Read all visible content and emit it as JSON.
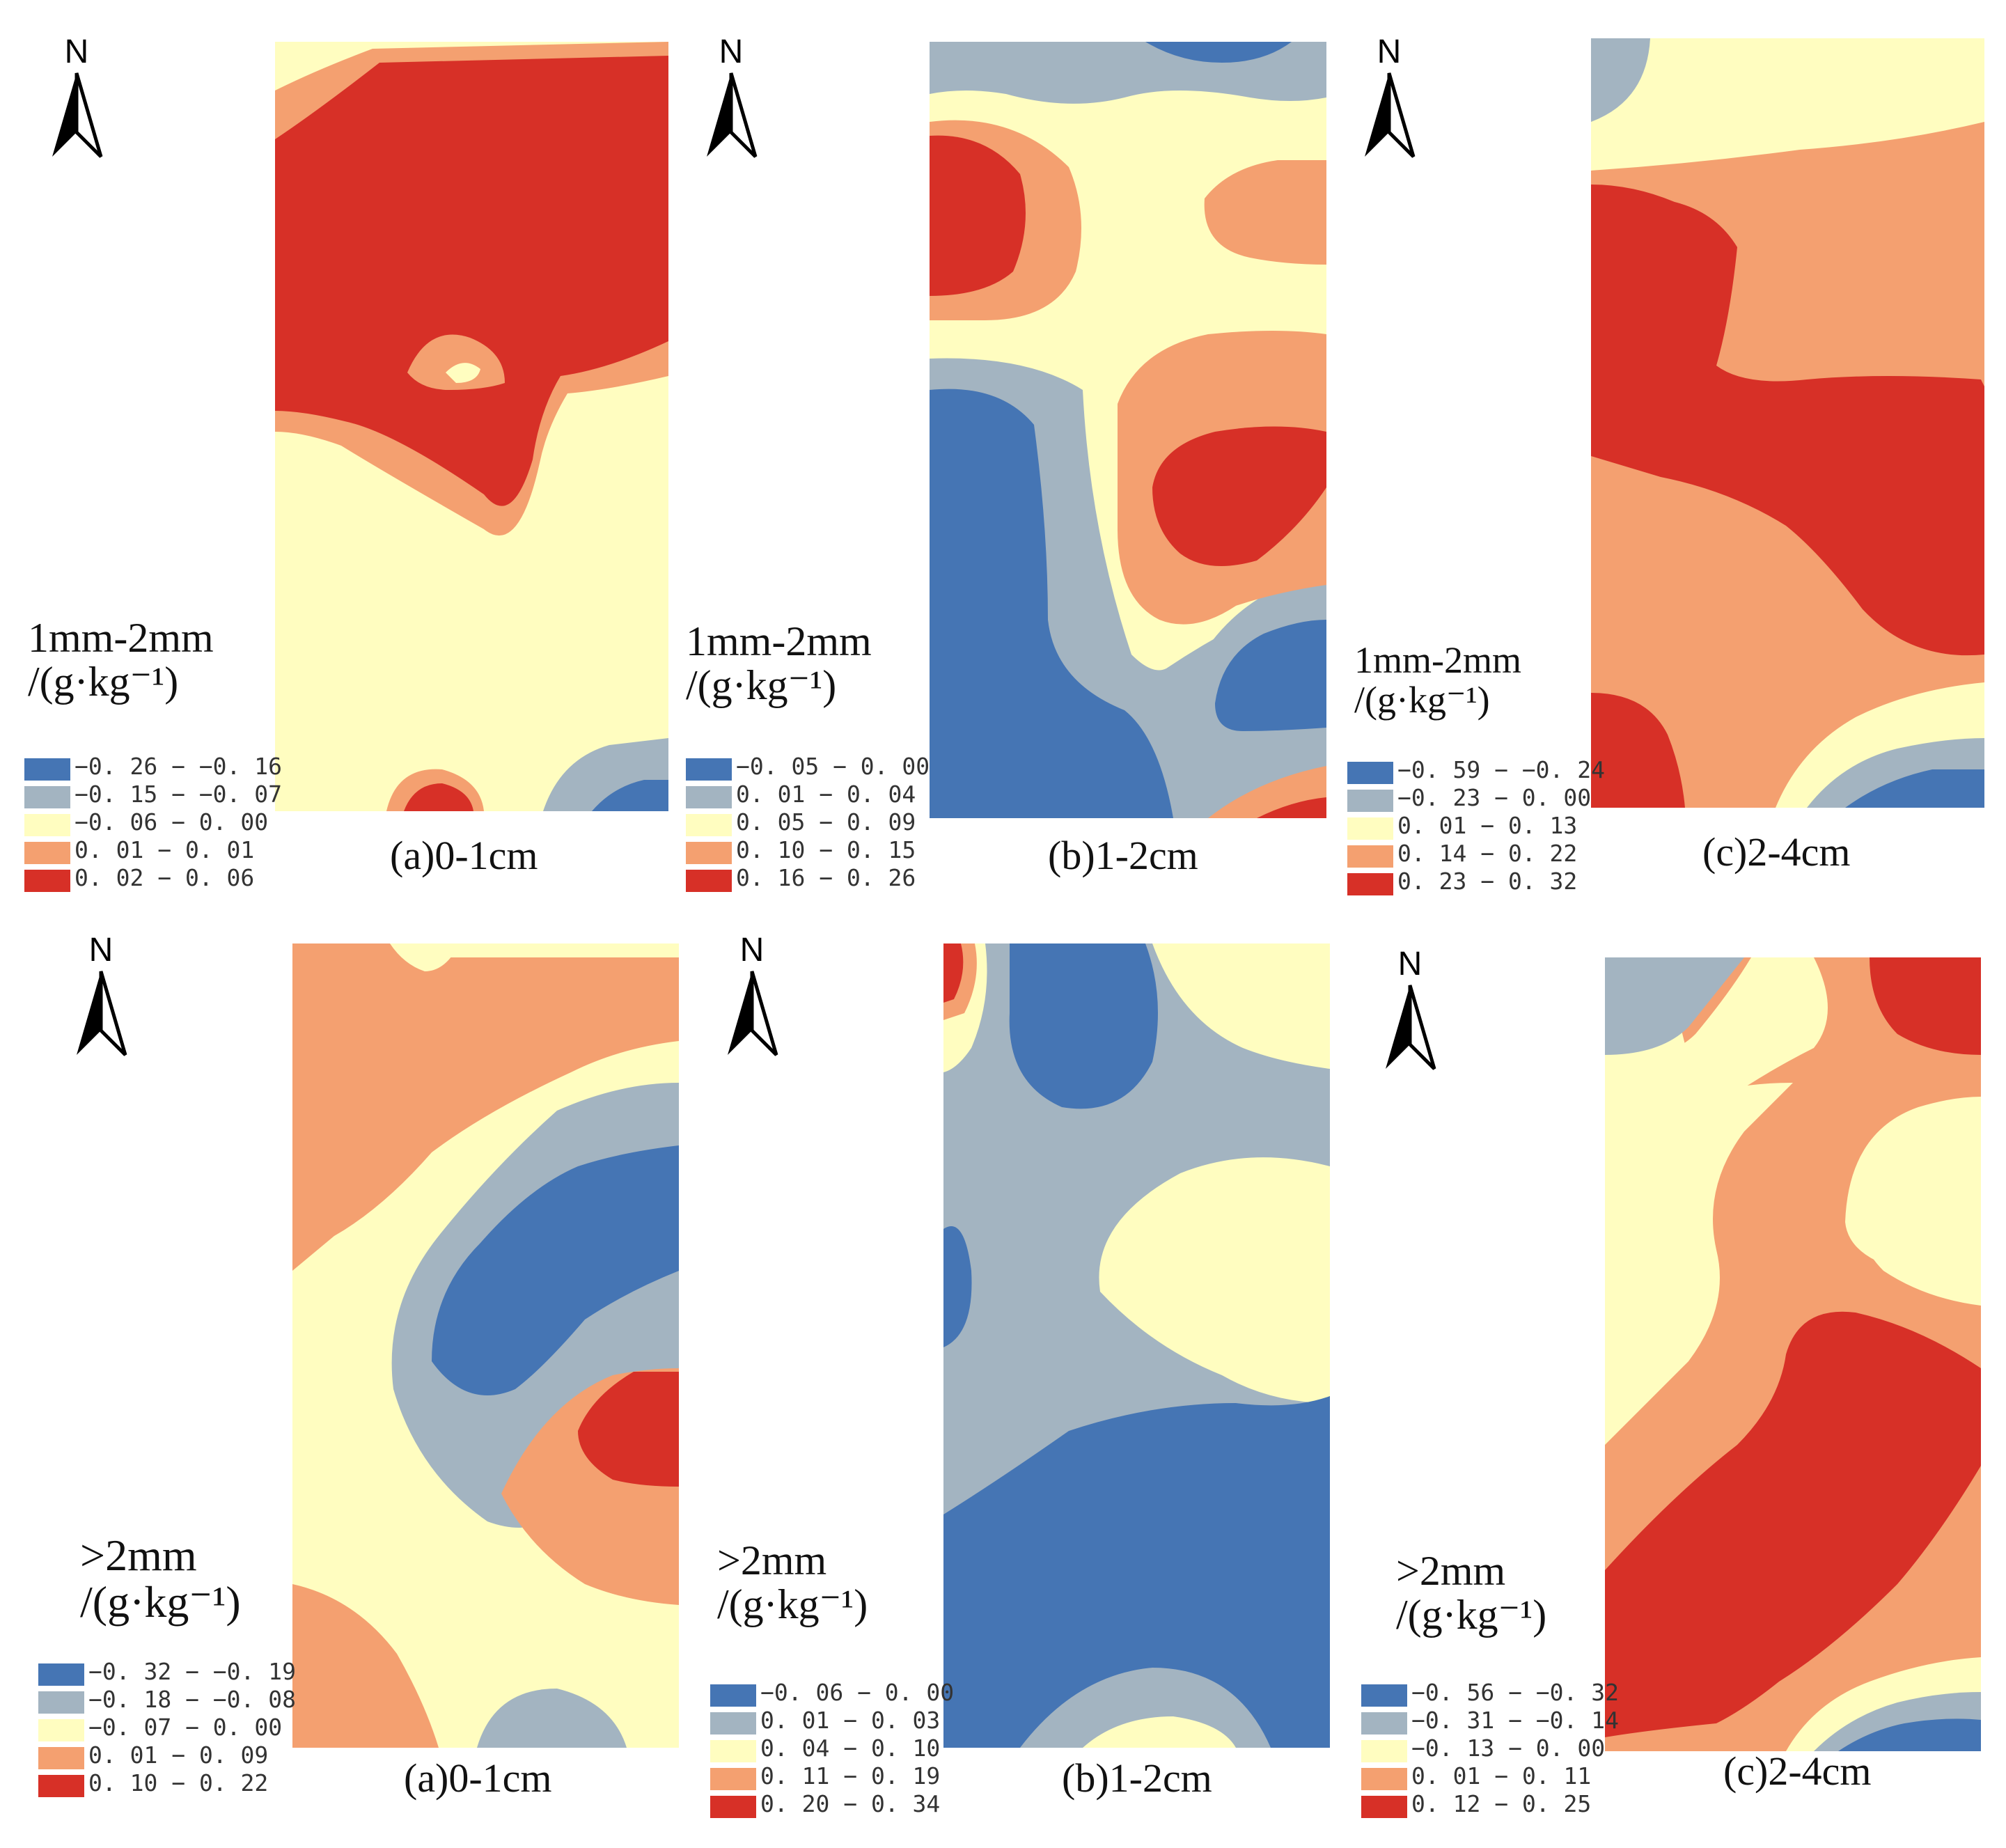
{
  "north_label": "N",
  "colors": {
    "c1": "#4575b4",
    "c2": "#a3b4c1",
    "c3": "#fffdc0",
    "c4": "#f4a070",
    "c5": "#d73027"
  },
  "panels": [
    {
      "title": "(a)0-1cm",
      "unit_line1": "1mm-2mm",
      "unit_line2": "/(g·kg⁻¹)",
      "legend": [
        "−0. 26 − −0. 16",
        "−0. 15 − −0. 07",
        "−0. 06 − 0. 00",
        "0. 01 − 0. 01",
        "0. 02 − 0. 06"
      ]
    },
    {
      "title": "(b)1-2cm",
      "unit_line1": "1mm-2mm",
      "unit_line2": "/(g·kg⁻¹)",
      "legend": [
        "−0. 05 − 0. 00",
        "0. 01 − 0. 04",
        "0. 05 − 0. 09",
        "0. 10 − 0. 15",
        "0. 16 − 0. 26"
      ]
    },
    {
      "title": "(c)2-4cm",
      "unit_line1": "1mm-2mm",
      "unit_line2": "/(g·kg⁻¹)",
      "legend": [
        "−0. 59 − −0. 24",
        "−0. 23 − 0. 00",
        "0. 01 − 0. 13",
        "0. 14 − 0. 22",
        "0. 23 − 0. 32"
      ]
    },
    {
      "title": "(a)0-1cm",
      "unit_line1": ">2mm",
      "unit_line2": "/(g·kg⁻¹)",
      "legend": [
        "−0. 32 − −0. 19",
        "−0. 18 − −0. 08",
        "−0. 07 − 0. 00",
        "0. 01 − 0. 09",
        "0. 10 − 0. 22"
      ]
    },
    {
      "title": "(b)1-2cm",
      "unit_line1": ">2mm",
      "unit_line2": "/(g·kg⁻¹)",
      "legend": [
        "−0. 06 − 0. 00",
        "0. 01 − 0. 03",
        "0. 04 − 0. 10",
        "0. 11 − 0. 19",
        "0. 20 − 0. 34"
      ]
    },
    {
      "title": "(c)2-4cm",
      "unit_line1": ">2mm",
      "unit_line2": "/(g·kg⁻¹)",
      "legend": [
        "−0. 56 − −0. 32",
        "−0. 31 − −0. 14",
        "−0. 13 − 0. 00",
        "0. 01 − 0. 11",
        "0. 12 − 0. 25"
      ]
    }
  ]
}
